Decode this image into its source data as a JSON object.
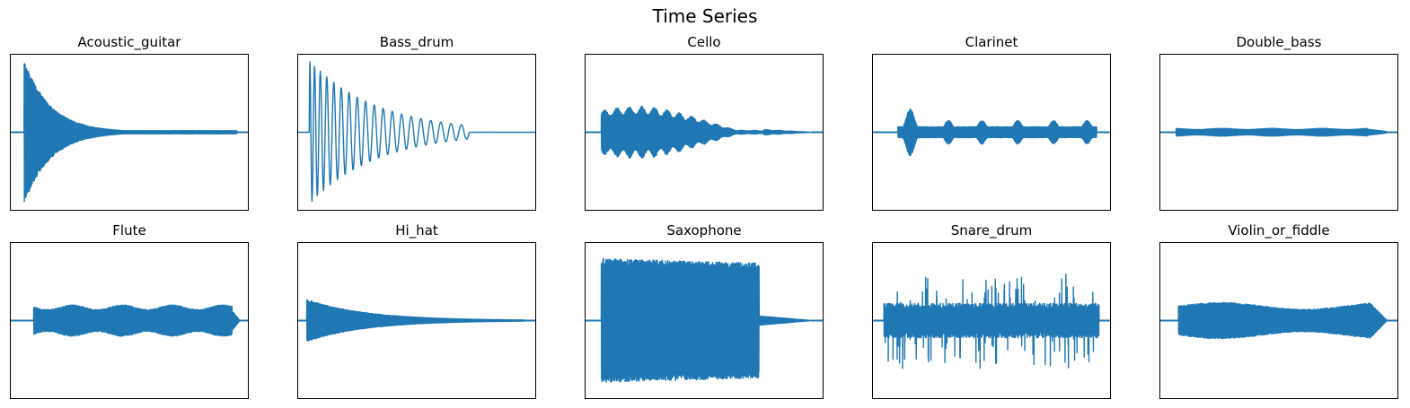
{
  "figure": {
    "suptitle": "Time Series",
    "line_color": "#1f77b4"
  },
  "chart_data": [
    {
      "type": "line",
      "title": "Acoustic_guitar",
      "xlabel": "",
      "ylabel": "",
      "ticks": "none",
      "grid": false,
      "envelope": {
        "shape": "pluck",
        "attack": 0.06,
        "peak": 0.92,
        "decay": 0.11,
        "sustain": 0.02,
        "end": 0.95
      }
    },
    {
      "type": "line",
      "title": "Bass_drum",
      "xlabel": "",
      "ylabel": "",
      "ticks": "none",
      "grid": false,
      "envelope": {
        "shape": "damped_oscillation",
        "start": 0.05,
        "peak": 0.92,
        "cycles": 19,
        "decay_end": 0.72,
        "end": 0.95
      }
    },
    {
      "type": "line",
      "title": "Cello",
      "xlabel": "",
      "ylabel": "",
      "ticks": "none",
      "grid": false,
      "envelope": {
        "shape": "swell",
        "start": 0.07,
        "peak": 0.33,
        "end": 0.75,
        "tail_end": 0.95,
        "lobes": 13
      }
    },
    {
      "type": "line",
      "title": "Clarinet",
      "xlabel": "",
      "ylabel": "",
      "ticks": "none",
      "grid": false,
      "envelope": {
        "shape": "lobes",
        "start": 0.12,
        "peak": 0.3,
        "base": 0.07,
        "end": 0.94,
        "lobe_centers": [
          0.14,
          0.3,
          0.44,
          0.59,
          0.74,
          0.88
        ]
      }
    },
    {
      "type": "line",
      "title": "Double_bass",
      "xlabel": "",
      "ylabel": "",
      "ticks": "none",
      "grid": false,
      "envelope": {
        "shape": "flat",
        "start": 0.07,
        "level": 0.05,
        "end": 0.87,
        "tail_end": 0.95
      }
    },
    {
      "type": "line",
      "title": "Flute",
      "xlabel": "",
      "ylabel": "",
      "ticks": "none",
      "grid": false,
      "envelope": {
        "shape": "flat",
        "start": 0.1,
        "level": 0.2,
        "end": 0.93,
        "tail_end": 0.96
      }
    },
    {
      "type": "line",
      "title": "Hi_hat",
      "xlabel": "",
      "ylabel": "",
      "ticks": "none",
      "grid": false,
      "envelope": {
        "shape": "exp_decay",
        "start": 0.04,
        "peak": 0.27,
        "decay": 0.25,
        "end": 0.95
      }
    },
    {
      "type": "line",
      "title": "Saxophone",
      "xlabel": "",
      "ylabel": "",
      "ticks": "none",
      "grid": false,
      "envelope": {
        "shape": "block",
        "start": 0.07,
        "level": 0.83,
        "end": 0.73,
        "tail_end": 0.95
      }
    },
    {
      "type": "line",
      "title": "Snare_drum",
      "xlabel": "",
      "ylabel": "",
      "ticks": "none",
      "grid": false,
      "envelope": {
        "shape": "noise",
        "start": 0.05,
        "level": 0.22,
        "spike": 0.4,
        "end": 0.95
      }
    },
    {
      "type": "line",
      "title": "Violin_or_fiddle",
      "xlabel": "",
      "ylabel": "",
      "ticks": "none",
      "grid": false,
      "envelope": {
        "shape": "flat_varying",
        "start": 0.08,
        "level": 0.22,
        "end": 0.88,
        "tail_end": 0.95
      }
    }
  ]
}
